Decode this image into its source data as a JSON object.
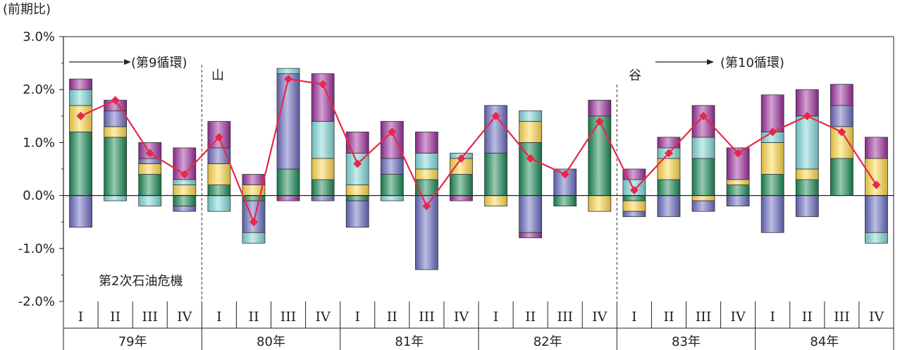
{
  "chart_data": {
    "type": "bar",
    "ylabel": "(前期比)",
    "ylim": [
      -2.0,
      3.0
    ],
    "ytick_labels": [
      "3.0%",
      "2.0%",
      "1.0%",
      "0.0%",
      "-1.0%",
      "-2.0%"
    ],
    "ytick_values": [
      3.0,
      2.0,
      1.0,
      0.0,
      -1.0,
      -2.0
    ],
    "years": [
      "79年",
      "80年",
      "81年",
      "82年",
      "83年",
      "84年"
    ],
    "quarters": [
      "I",
      "II",
      "III",
      "IV"
    ],
    "categories": [
      "79 I",
      "79 II",
      "79 III",
      "79 IV",
      "80 I",
      "80 II",
      "80 III",
      "80 IV",
      "81 I",
      "81 II",
      "81 III",
      "81 IV",
      "82 I",
      "82 II",
      "82 III",
      "82 IV",
      "83 I",
      "83 II",
      "83 III",
      "83 IV",
      "84 I",
      "84 II",
      "84 III",
      "84 IV"
    ],
    "series": [
      {
        "color": "#1a8a55",
        "values": [
          1.2,
          1.1,
          0.4,
          -0.2,
          0.2,
          -0.1,
          0.5,
          0.3,
          -0.1,
          0.4,
          0.3,
          0.4,
          0.8,
          1.0,
          -0.2,
          1.5,
          -0.1,
          0.3,
          0.7,
          0.2,
          0.4,
          0.3,
          0.7,
          0
        ]
      },
      {
        "color": "#ffd84a",
        "values": [
          0.5,
          0.2,
          0.2,
          0.2,
          0.4,
          0.2,
          0,
          0.4,
          0.2,
          0,
          0.2,
          0.3,
          -0.2,
          0.4,
          0,
          -0.3,
          -0.2,
          0.4,
          -0.1,
          0.1,
          0.6,
          0.2,
          0.6,
          0.7
        ]
      },
      {
        "color": "#6a6cc0",
        "values": [
          -0.6,
          0.3,
          0.1,
          -0.1,
          0.3,
          -0.6,
          1.8,
          -0.1,
          -0.5,
          0.3,
          -1.4,
          0,
          0.9,
          -0.7,
          0.5,
          0,
          -0.1,
          -0.4,
          -0.2,
          -0.2,
          -0.7,
          -0.4,
          0.4,
          -0.7
        ]
      },
      {
        "color": "#7fd8d8",
        "values": [
          0.3,
          -0.1,
          -0.2,
          0.1,
          -0.3,
          -0.2,
          0.1,
          0.7,
          0.6,
          -0.1,
          0.3,
          0.1,
          0,
          0.2,
          0,
          0,
          0.3,
          0.2,
          0.4,
          0,
          0.2,
          1.0,
          0,
          -0.2
        ]
      },
      {
        "color": "#9b2f9b",
        "values": [
          0.2,
          0.2,
          0.3,
          0.6,
          0.5,
          0.2,
          -0.1,
          0.9,
          0.4,
          0.7,
          0.4,
          -0.1,
          0,
          -0.1,
          0,
          0.3,
          0.2,
          0.2,
          0.6,
          0.6,
          0.7,
          0.5,
          0.4,
          0.4
        ]
      }
    ],
    "line": {
      "color": "#e8284a",
      "values": [
        1.5,
        1.8,
        0.8,
        0.4,
        1.1,
        -0.5,
        2.2,
        2.1,
        0.6,
        1.2,
        -0.2,
        0.7,
        1.5,
        0.7,
        0.4,
        1.4,
        0.1,
        0.8,
        1.5,
        0.8,
        1.2,
        1.5,
        1.2,
        0.2
      ]
    },
    "annotations": {
      "cycle9": "(第9循環)",
      "cycle10": "(第10循環)",
      "peak": "山",
      "trough": "谷",
      "oil_crisis": "第2次石油危機"
    }
  }
}
